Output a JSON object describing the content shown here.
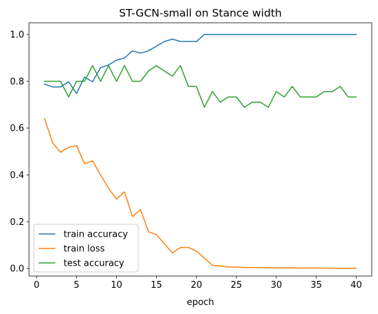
{
  "chart_data": {
    "type": "line",
    "title": "ST-GCN-small on Stance width",
    "xlabel": "epoch",
    "ylabel": "",
    "xlim": [
      -0.95,
      41.95
    ],
    "ylim": [
      -0.032,
      1.05
    ],
    "x_ticks": [
      0,
      5,
      10,
      15,
      20,
      25,
      30,
      35,
      40
    ],
    "y_ticks": [
      0.0,
      0.2,
      0.4,
      0.6,
      0.8,
      1.0
    ],
    "y_tick_labels": [
      "0.0",
      "0.2",
      "0.4",
      "0.6",
      "0.8",
      "1.0"
    ],
    "grid": false,
    "legend_position": "lower-left",
    "x": [
      1,
      2,
      3,
      4,
      5,
      6,
      7,
      8,
      9,
      10,
      11,
      12,
      13,
      14,
      15,
      16,
      17,
      18,
      19,
      20,
      21,
      22,
      23,
      24,
      25,
      26,
      27,
      28,
      29,
      30,
      31,
      32,
      33,
      34,
      35,
      36,
      37,
      38,
      39,
      40
    ],
    "series": [
      {
        "name": "train accuracy",
        "color": "#1f77b4",
        "values": [
          0.788,
          0.776,
          0.776,
          0.798,
          0.748,
          0.818,
          0.798,
          0.858,
          0.87,
          0.89,
          0.9,
          0.93,
          0.92,
          0.93,
          0.95,
          0.97,
          0.98,
          0.97,
          0.97,
          0.97,
          1.0,
          1.0,
          1.0,
          1.0,
          1.0,
          1.0,
          1.0,
          1.0,
          1.0,
          1.0,
          1.0,
          1.0,
          1.0,
          1.0,
          1.0,
          1.0,
          1.0,
          1.0,
          1.0,
          1.0
        ]
      },
      {
        "name": "train loss",
        "color": "#ff7f0e",
        "values": [
          0.64,
          0.537,
          0.497,
          0.518,
          0.525,
          0.448,
          0.46,
          0.4,
          0.343,
          0.297,
          0.328,
          0.222,
          0.252,
          0.157,
          0.145,
          0.105,
          0.067,
          0.09,
          0.09,
          0.075,
          0.045,
          0.014,
          0.011,
          0.007,
          0.006,
          0.005,
          0.004,
          0.004,
          0.003,
          0.003,
          0.003,
          0.003,
          0.002,
          0.002,
          0.002,
          0.002,
          0.001,
          0.001,
          0.001,
          0.001
        ]
      },
      {
        "name": "test accuracy",
        "color": "#2ca02c",
        "values": [
          0.8,
          0.8,
          0.8,
          0.733,
          0.8,
          0.8,
          0.867,
          0.8,
          0.867,
          0.8,
          0.867,
          0.8,
          0.8,
          0.844,
          0.867,
          0.844,
          0.822,
          0.867,
          0.778,
          0.778,
          0.689,
          0.756,
          0.711,
          0.733,
          0.733,
          0.689,
          0.711,
          0.711,
          0.689,
          0.756,
          0.733,
          0.778,
          0.733,
          0.733,
          0.733,
          0.756,
          0.756,
          0.778,
          0.733,
          0.733
        ]
      }
    ]
  }
}
